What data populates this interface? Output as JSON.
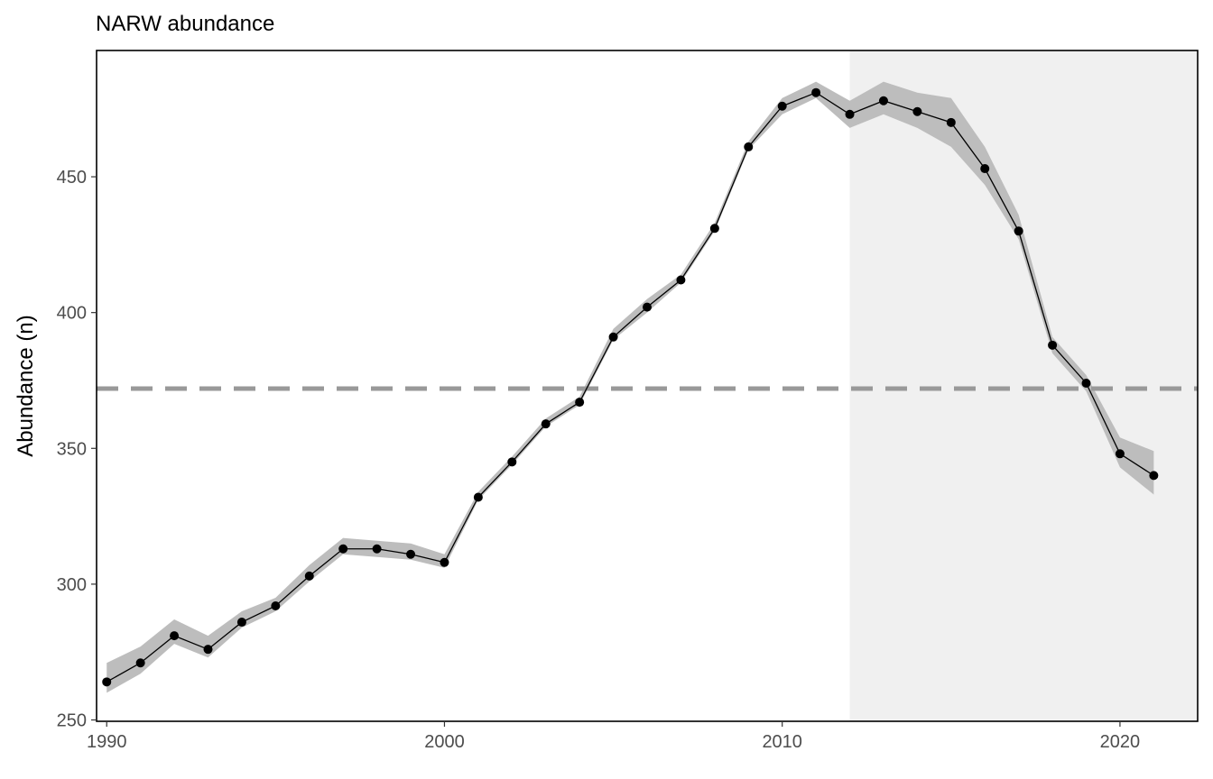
{
  "chart_data": {
    "type": "line",
    "title": "NARW abundance",
    "xlabel": "",
    "ylabel": "Abundance (n)",
    "xlim": [
      1989.7,
      2022.3
    ],
    "ylim": [
      249.5,
      496.5
    ],
    "x_ticks": [
      1990,
      2000,
      2010,
      2020
    ],
    "y_ticks": [
      250,
      300,
      350,
      400,
      450
    ],
    "grid": false,
    "legend": "none",
    "reference_line": {
      "y": 372,
      "style": "dashed",
      "color": "#999999"
    },
    "shaded_region": {
      "x_start": 2012,
      "x_end": 2022.3,
      "color": "#f0f0f0"
    },
    "series": [
      {
        "x": [
          1990,
          1991,
          1992,
          1993,
          1994,
          1995,
          1996,
          1997,
          1998,
          1999,
          2000,
          2001,
          2002,
          2003,
          2004,
          2005,
          2006,
          2007,
          2008,
          2009,
          2010,
          2011,
          2012,
          2013,
          2014,
          2015,
          2016,
          2017,
          2018,
          2019,
          2020,
          2021
        ],
        "values": [
          264,
          271,
          281,
          276,
          286,
          292,
          303,
          313,
          313,
          311,
          308,
          332,
          345,
          359,
          367,
          391,
          402,
          412,
          431,
          461,
          476,
          481,
          473,
          478,
          474,
          470,
          453,
          430,
          388,
          374,
          348,
          340
        ],
        "lower": [
          260,
          267,
          278,
          273,
          284,
          290,
          301,
          311,
          310,
          309,
          306,
          331,
          344,
          358,
          366,
          390,
          400,
          411,
          430,
          460,
          473,
          479,
          468,
          473,
          468,
          461,
          447,
          427,
          385,
          371,
          343,
          333
        ],
        "upper": [
          271,
          277,
          287,
          281,
          290,
          295,
          307,
          317,
          316,
          315,
          311,
          334,
          347,
          361,
          369,
          394,
          405,
          414,
          433,
          463,
          479,
          485,
          478,
          485,
          481,
          479,
          461,
          436,
          391,
          377,
          354,
          349
        ]
      }
    ]
  }
}
